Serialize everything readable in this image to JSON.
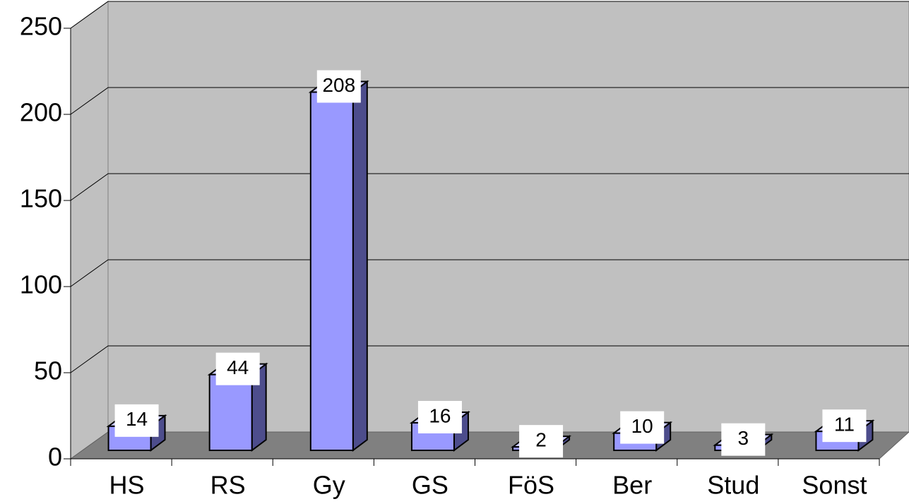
{
  "chart_data": {
    "type": "bar3d",
    "categories": [
      "HS",
      "RS",
      "Gy",
      "GS",
      "FöS",
      "Ber",
      "Stud",
      "Sonst"
    ],
    "values": [
      14,
      44,
      208,
      16,
      2,
      10,
      3,
      11
    ],
    "color": "#9999ff",
    "ylim": [
      0,
      250
    ],
    "yticks": [
      0,
      50,
      100,
      150,
      200,
      250
    ],
    "grid": true
  }
}
